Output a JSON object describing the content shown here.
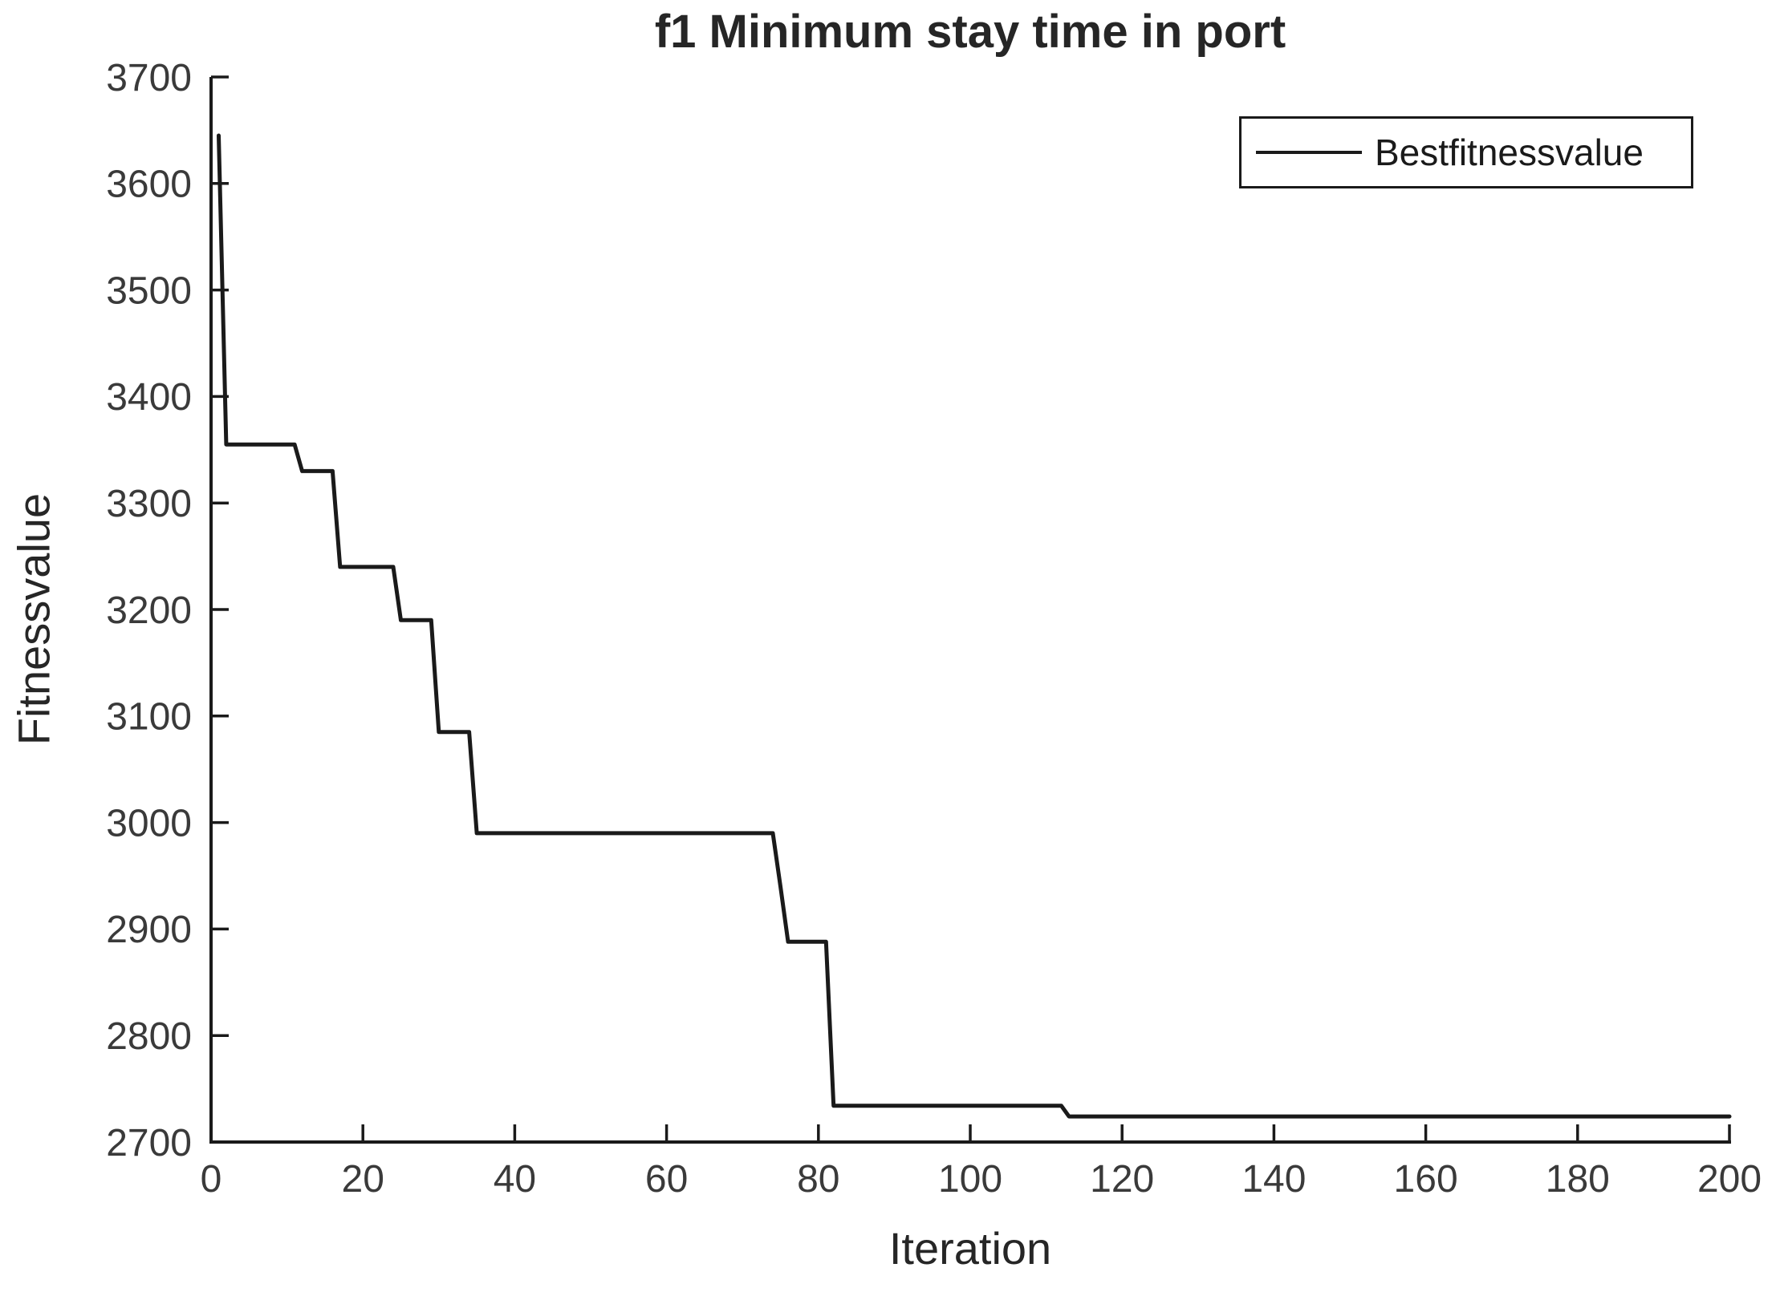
{
  "chart_data": {
    "type": "line",
    "title": "f1 Minimum stay time in port",
    "xlabel": "Iteration",
    "ylabel": "Fitnessvalue",
    "xlim": [
      0,
      200
    ],
    "ylim": [
      2700,
      3700
    ],
    "x_ticks": [
      0,
      20,
      40,
      60,
      80,
      100,
      120,
      140,
      160,
      180,
      200
    ],
    "y_ticks": [
      2700,
      2800,
      2900,
      3000,
      3100,
      3200,
      3300,
      3400,
      3500,
      3600,
      3700
    ],
    "grid": false,
    "legend_position": "top-right",
    "axis_color": "#1a1a1a",
    "tick_label_color": "#3a3a3a",
    "series": [
      {
        "name": "Bestfitnessvalue",
        "color": "#1a1a1a",
        "points": [
          [
            1,
            3645
          ],
          [
            2,
            3355
          ],
          [
            11,
            3355
          ],
          [
            12,
            3330
          ],
          [
            16,
            3330
          ],
          [
            17,
            3240
          ],
          [
            24,
            3240
          ],
          [
            25,
            3190
          ],
          [
            29,
            3190
          ],
          [
            30,
            3085
          ],
          [
            34,
            3085
          ],
          [
            35,
            2990
          ],
          [
            74,
            2990
          ],
          [
            75,
            2940
          ],
          [
            76,
            2888
          ],
          [
            81,
            2888
          ],
          [
            82,
            2734
          ],
          [
            112,
            2734
          ],
          [
            113,
            2724
          ],
          [
            200,
            2724
          ]
        ]
      }
    ]
  }
}
